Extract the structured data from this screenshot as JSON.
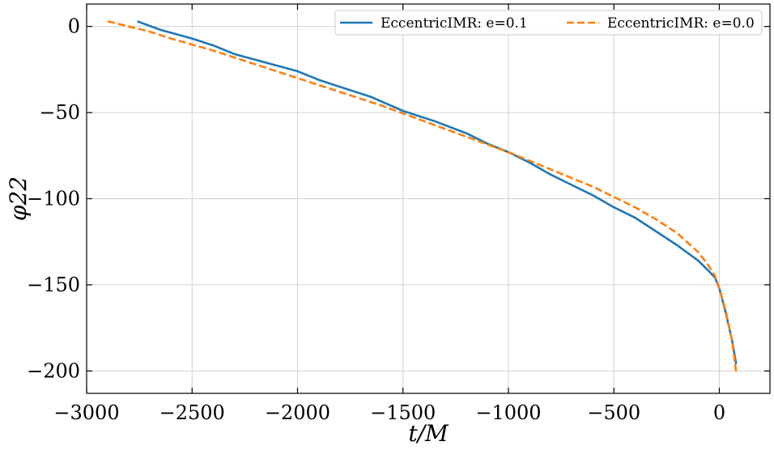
{
  "chart_data": {
    "type": "line",
    "xlabel": "t/M",
    "ylabel": "φ22",
    "xlim": [
      -3000,
      240
    ],
    "ylim": [
      -213,
      13
    ],
    "xticks": [
      -3000,
      -2500,
      -2000,
      -1500,
      -1000,
      -500,
      0
    ],
    "yticks": [
      0,
      -50,
      -100,
      -150,
      -200
    ],
    "xtick_labels": [
      "−3000",
      "−2500",
      "−2000",
      "−1500",
      "−1000",
      "−500",
      "0"
    ],
    "ytick_labels": [
      "0",
      "−50",
      "−100",
      "−150",
      "−200"
    ],
    "grid": true,
    "legend": {
      "placement": "top-right",
      "columns": 2
    },
    "series": [
      {
        "name": "EccentricIMR: e=0.1",
        "color": "#1f77b4",
        "style": "solid",
        "x": [
          -2760,
          -2650,
          -2500,
          -2400,
          -2300,
          -2150,
          -2000,
          -1900,
          -1800,
          -1650,
          -1500,
          -1350,
          -1200,
          -1100,
          -1000,
          -900,
          -800,
          -700,
          -600,
          -500,
          -400,
          -300,
          -200,
          -100,
          -50,
          -20,
          0,
          30,
          60,
          80
        ],
        "y": [
          3,
          -2,
          -7,
          -11,
          -16,
          -21,
          -26,
          -31,
          -35,
          -41,
          -49,
          -55,
          -62,
          -68,
          -73,
          -79,
          -86,
          -92,
          -98,
          -105,
          -111,
          -119,
          -127,
          -136,
          -142,
          -146,
          -152,
          -166,
          -182,
          -196
        ]
      },
      {
        "name": "EccentricIMR: e=0.0",
        "color": "#ff7f0e",
        "style": "dashed",
        "x": [
          -2900,
          -2800,
          -2700,
          -2600,
          -2400,
          -2200,
          -2000,
          -1800,
          -1600,
          -1400,
          -1200,
          -1000,
          -800,
          -600,
          -400,
          -300,
          -200,
          -100,
          -50,
          -20,
          0,
          30,
          60,
          80
        ],
        "y": [
          3,
          0,
          -3,
          -7,
          -14,
          -22,
          -30,
          -38,
          -46,
          -55,
          -64,
          -73,
          -83,
          -93,
          -105,
          -112,
          -120,
          -131,
          -139,
          -145,
          -152,
          -165,
          -182,
          -201
        ]
      }
    ]
  }
}
